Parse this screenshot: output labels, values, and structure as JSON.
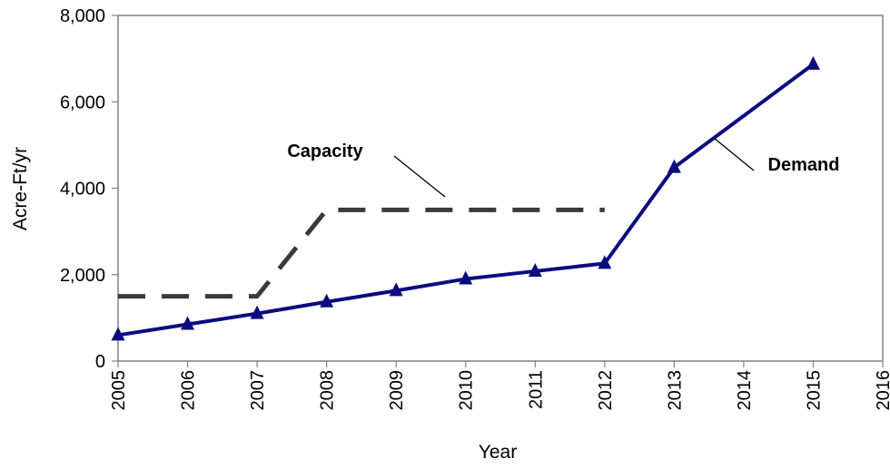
{
  "chart_data": {
    "type": "line",
    "xlabel": "Year",
    "ylabel": "Acre-Ft/yr",
    "xlim": [
      2005,
      2016
    ],
    "ylim": [
      0,
      8000
    ],
    "x_ticks": [
      "2005",
      "2006",
      "2007",
      "2008",
      "2009",
      "2010",
      "2011",
      "2012",
      "2013",
      "2014",
      "2015",
      "2016"
    ],
    "y_ticks": [
      "0",
      "2,000",
      "4,000",
      "6,000",
      "8,000"
    ],
    "grid": false,
    "legend": "none",
    "series": [
      {
        "name": "Capacity",
        "style": "dashed",
        "color": "#3a3a3a",
        "x": [
          2005,
          2007,
          2008,
          2012
        ],
        "values": [
          1500,
          1500,
          3500,
          3500
        ]
      },
      {
        "name": "Demand",
        "style": "solid",
        "marker": "triangle",
        "color": "#0b0b80",
        "x": [
          2005,
          2006,
          2007,
          2008,
          2009,
          2010,
          2011,
          2012,
          2013,
          2015
        ],
        "values": [
          600,
          850,
          1100,
          1370,
          1630,
          1900,
          2080,
          2260,
          4480,
          6870
        ]
      }
    ]
  }
}
